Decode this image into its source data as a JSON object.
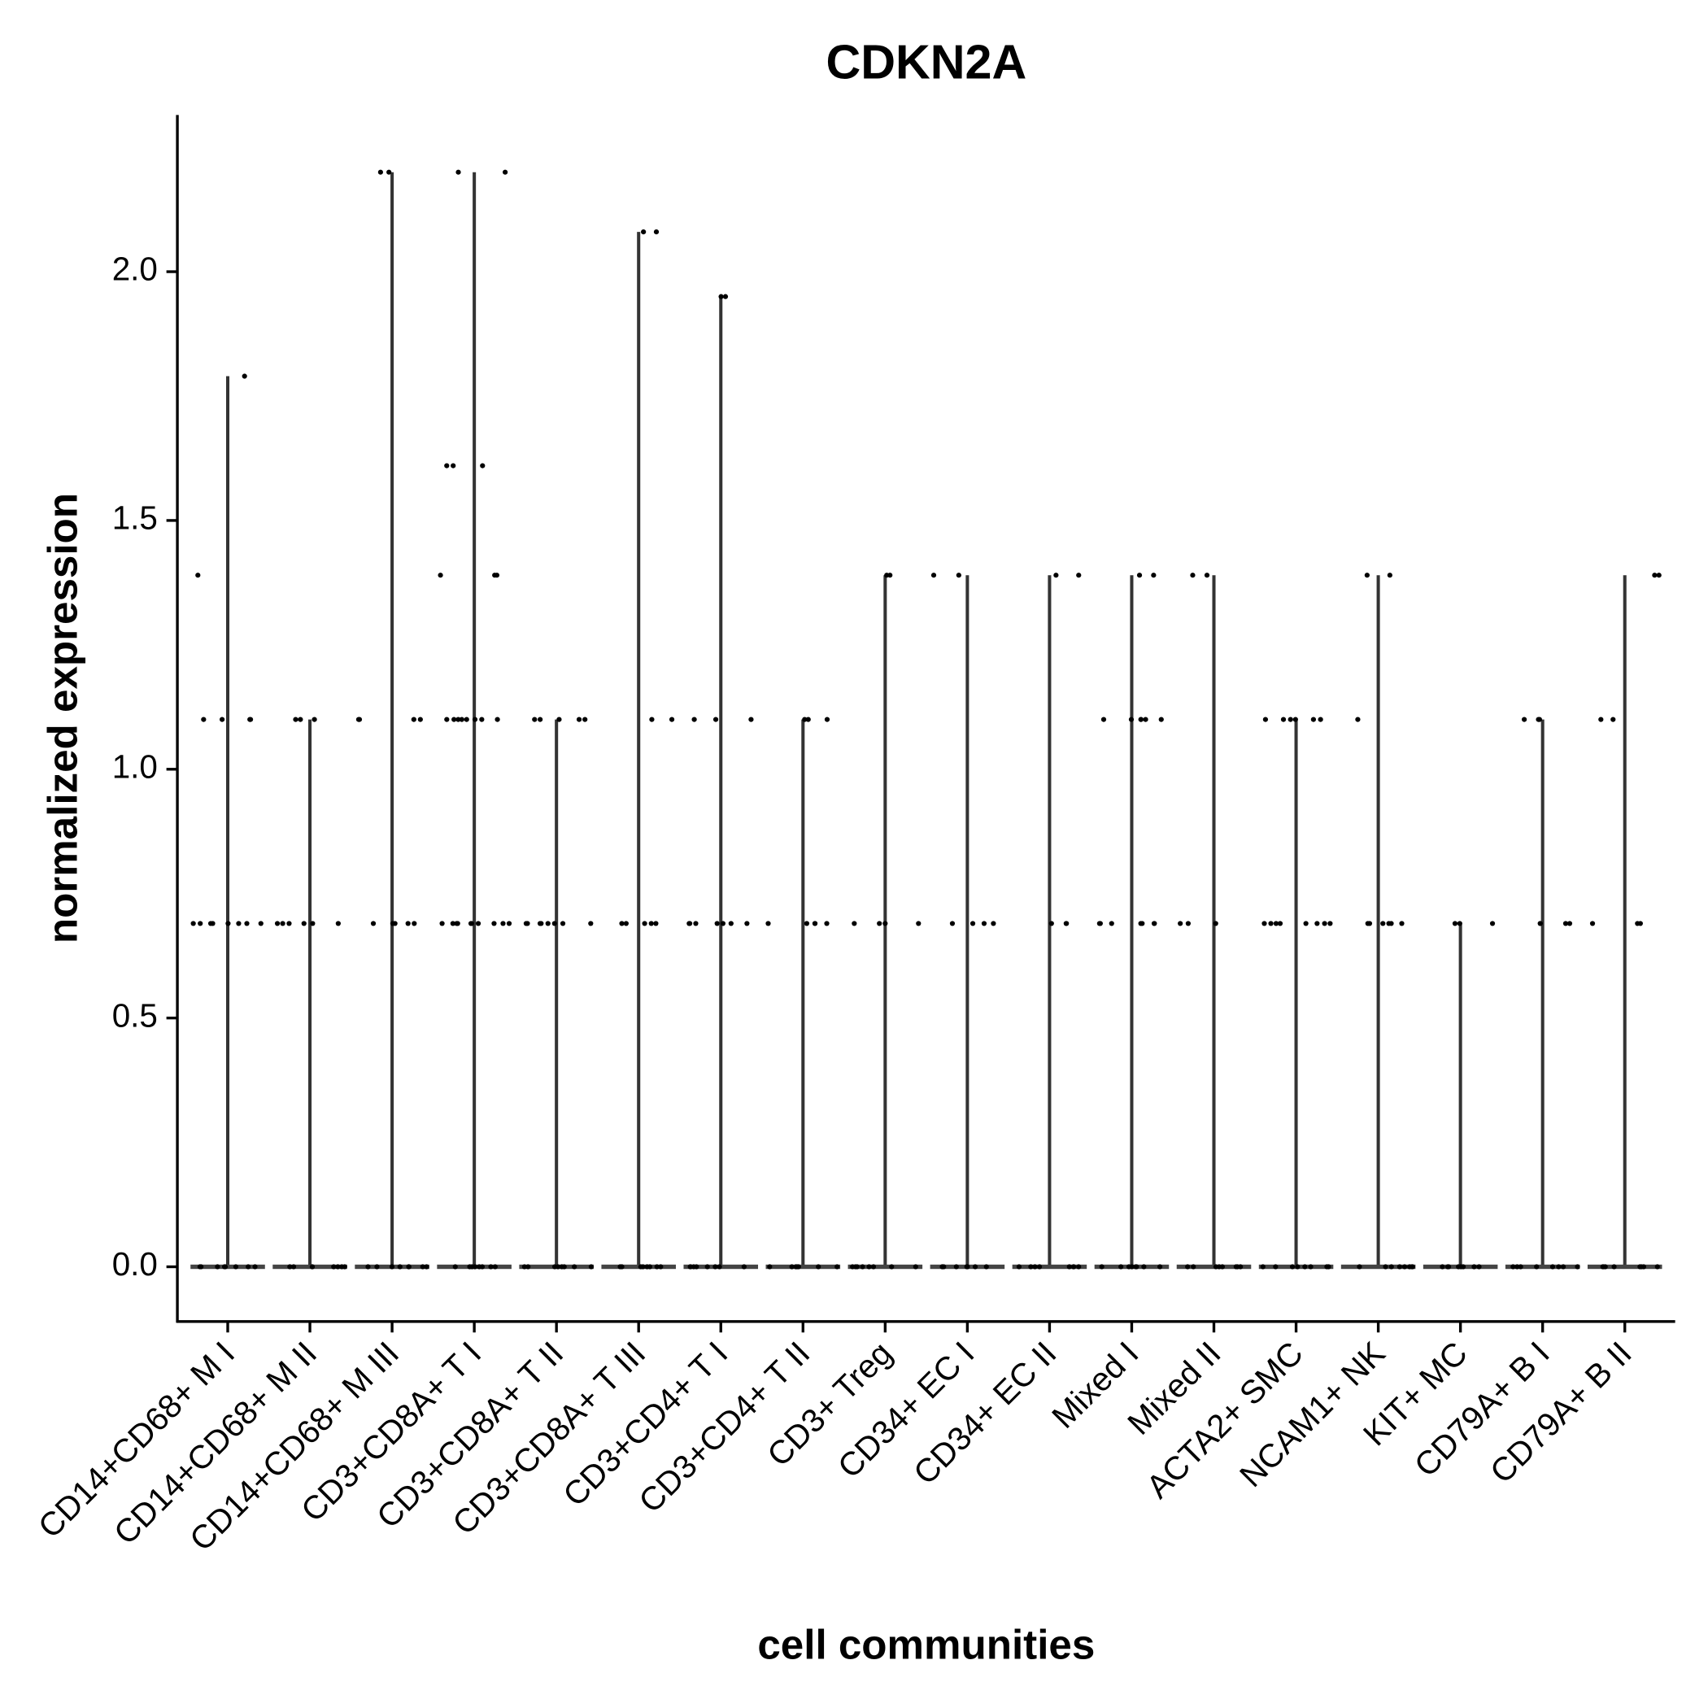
{
  "chart_data": {
    "type": "violin",
    "title": "CDKN2A",
    "x_label": "cell communities",
    "y_label": "normalized expression",
    "categories": [
      "CD14+CD68+ M I",
      "CD14+CD68+ M II",
      "CD14+CD68+ M III",
      "CD3+CD8A+ T I",
      "CD3+CD8A+ T II",
      "CD3+CD8A+ T III",
      "CD3+CD4+ T I",
      "CD3+CD4+ T II",
      "CD3+ Treg",
      "CD34+ EC I",
      "CD34+ EC II",
      "Mixed I",
      "Mixed II",
      "ACTA2+ SMC",
      "NCAM1+ NK",
      "KIT+ MC",
      "CD79A+ B I",
      "CD79A+ B II"
    ],
    "values": [
      [
        1.79,
        1.39,
        1.1,
        1.1,
        1.1,
        1.1,
        0.69,
        0.69,
        0.69,
        0.69,
        0.69,
        0.69,
        0.69,
        0.69,
        0,
        0,
        0,
        0,
        0,
        0,
        0,
        0
      ],
      [
        1.1,
        1.1,
        1.1,
        0.69,
        0.69,
        0.69,
        0.69,
        0.69,
        0.69,
        0,
        0,
        0,
        0,
        0,
        0,
        0,
        0
      ],
      [
        2.2,
        2.2,
        1.1,
        1.1,
        1.1,
        1.1,
        0.69,
        0.69,
        0.69,
        0.69,
        0.69,
        0,
        0,
        0,
        0,
        0,
        0,
        0,
        0
      ],
      [
        2.2,
        2.2,
        1.61,
        1.61,
        1.61,
        1.39,
        1.39,
        1.39,
        1.1,
        1.1,
        1.1,
        1.1,
        1.1,
        1.1,
        1.1,
        1.1,
        0.69,
        0.69,
        0.69,
        0.69,
        0.69,
        0.69,
        0.69,
        0.69,
        0.69,
        0.69,
        0,
        0,
        0,
        0,
        0,
        0,
        0,
        0
      ],
      [
        1.1,
        1.1,
        1.1,
        1.1,
        1.1,
        0.69,
        0.69,
        0.69,
        0.69,
        0.69,
        0.69,
        0.69,
        0.69,
        0,
        0,
        0,
        0,
        0,
        0,
        0,
        0
      ],
      [
        2.08,
        2.08,
        1.1,
        1.1,
        0.69,
        0.69,
        0.69,
        0.69,
        0.69,
        0,
        0,
        0,
        0,
        0,
        0,
        0,
        0
      ],
      [
        1.95,
        1.95,
        1.1,
        1.1,
        1.1,
        0.69,
        0.69,
        0.69,
        0.69,
        0.69,
        0.69,
        0.69,
        0,
        0,
        0,
        0,
        0,
        0,
        0,
        0
      ],
      [
        1.1,
        1.1,
        1.1,
        0.69,
        0.69,
        0.69,
        0.69,
        0.69,
        0,
        0,
        0,
        0,
        0,
        0,
        0,
        0
      ],
      [
        1.39,
        1.39,
        0.69,
        0.69,
        0.69,
        0.69,
        0,
        0,
        0,
        0,
        0,
        0,
        0,
        0
      ],
      [
        1.39,
        1.39,
        0.69,
        0.69,
        0.69,
        0.69,
        0,
        0,
        0,
        0,
        0,
        0,
        0,
        0
      ],
      [
        1.39,
        1.39,
        0.69,
        0.69,
        0.69,
        0,
        0,
        0,
        0,
        0,
        0,
        0,
        0
      ],
      [
        1.39,
        1.39,
        1.1,
        1.1,
        1.1,
        1.1,
        1.1,
        1.1,
        0.69,
        0.69,
        0.69,
        0.69,
        0.69,
        0.69,
        0.69,
        0,
        0,
        0,
        0,
        0,
        0,
        0,
        0
      ],
      [
        1.39,
        1.39,
        0.69,
        0.69,
        0.69,
        0,
        0,
        0,
        0,
        0,
        0,
        0,
        0
      ],
      [
        1.1,
        1.1,
        1.1,
        1.1,
        1.1,
        1.1,
        0.69,
        0.69,
        0.69,
        0.69,
        0.69,
        0.69,
        0.69,
        0.69,
        0,
        0,
        0,
        0,
        0,
        0,
        0,
        0
      ],
      [
        1.39,
        1.39,
        1.1,
        0.69,
        0.69,
        0.69,
        0.69,
        0.69,
        0.69,
        0,
        0,
        0,
        0,
        0,
        0,
        0,
        0
      ],
      [
        0.69,
        0.69,
        0.69,
        0,
        0,
        0,
        0,
        0,
        0,
        0,
        0
      ],
      [
        1.1,
        1.1,
        1.1,
        0.69,
        0.69,
        0.69,
        0.69,
        0,
        0,
        0,
        0,
        0,
        0,
        0,
        0
      ],
      [
        1.39,
        1.39,
        1.1,
        1.1,
        0.69,
        0.69,
        0.69,
        0,
        0,
        0,
        0,
        0,
        0,
        0,
        0
      ]
    ],
    "color": "#000000",
    "ylim": [
      -0.11,
      2.315
    ],
    "yticks": [
      {
        "value": 0,
        "label": "0.0"
      },
      0.5,
      {
        "value": 1,
        "label": "1.0"
      },
      1.5,
      {
        "value": 2,
        "label": "2.0"
      }
    ]
  }
}
